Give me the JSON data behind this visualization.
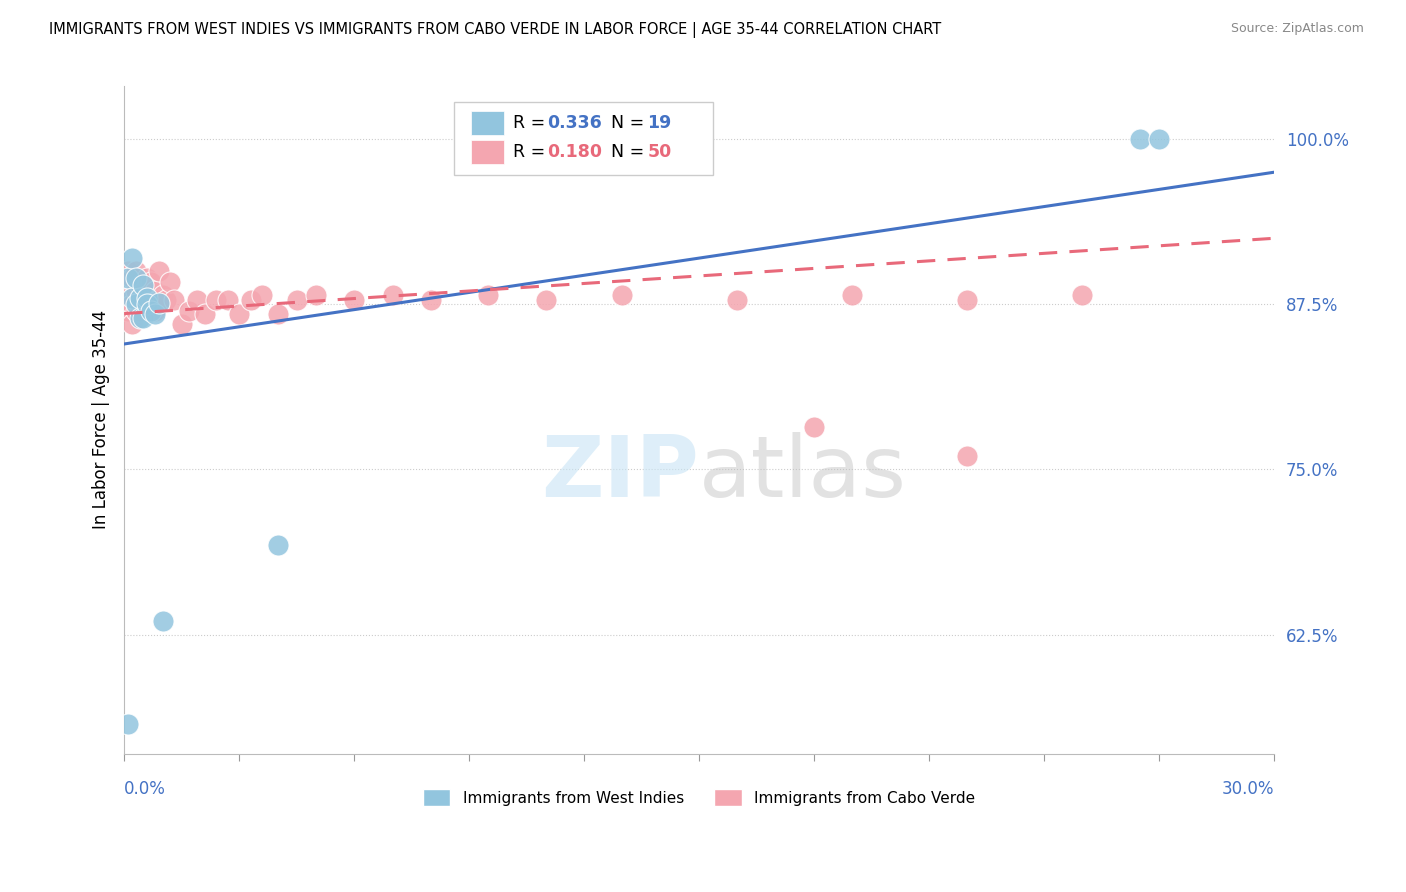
{
  "title": "IMMIGRANTS FROM WEST INDIES VS IMMIGRANTS FROM CABO VERDE IN LABOR FORCE | AGE 35-44 CORRELATION CHART",
  "source": "Source: ZipAtlas.com",
  "ylabel": "In Labor Force | Age 35-44",
  "xlim": [
    0.0,
    0.3
  ],
  "ylim": [
    0.535,
    1.04
  ],
  "ytick_vals": [
    0.625,
    0.75,
    0.875,
    1.0
  ],
  "ytick_labels": [
    "62.5%",
    "75.0%",
    "87.5%",
    "100.0%"
  ],
  "color_blue": "#92C5DE",
  "color_pink": "#F4A6B0",
  "color_line_blue": "#4472C4",
  "color_line_pink": "#E8697A",
  "R_blue_str": "0.336",
  "N_blue_str": "19",
  "R_pink_str": "0.180",
  "N_pink_str": "50",
  "blue_line_y0": 0.845,
  "blue_line_y1": 0.975,
  "pink_line_y0": 0.868,
  "pink_line_y1": 0.925,
  "west_indies_x": [
    0.001,
    0.001,
    0.002,
    0.002,
    0.003,
    0.003,
    0.004,
    0.004,
    0.005,
    0.005,
    0.006,
    0.006,
    0.007,
    0.008,
    0.009,
    0.01,
    0.04,
    0.265,
    0.27
  ],
  "west_indies_y": [
    0.557,
    0.895,
    0.88,
    0.91,
    0.875,
    0.895,
    0.88,
    0.865,
    0.89,
    0.865,
    0.88,
    0.875,
    0.87,
    0.868,
    0.876,
    0.635,
    0.693,
    1.0,
    1.0
  ],
  "cabo_verde_x": [
    0.001,
    0.001,
    0.001,
    0.002,
    0.002,
    0.002,
    0.003,
    0.003,
    0.003,
    0.004,
    0.004,
    0.004,
    0.005,
    0.005,
    0.006,
    0.006,
    0.007,
    0.007,
    0.008,
    0.008,
    0.009,
    0.009,
    0.01,
    0.011,
    0.012,
    0.013,
    0.015,
    0.017,
    0.019,
    0.021,
    0.024,
    0.027,
    0.03,
    0.033,
    0.036,
    0.04,
    0.045,
    0.05,
    0.06,
    0.07,
    0.08,
    0.095,
    0.11,
    0.13,
    0.16,
    0.19,
    0.22,
    0.25,
    0.18,
    0.22
  ],
  "cabo_verde_y": [
    0.9,
    0.88,
    0.87,
    0.895,
    0.875,
    0.86,
    0.885,
    0.87,
    0.9,
    0.875,
    0.89,
    0.87,
    0.878,
    0.89,
    0.875,
    0.895,
    0.878,
    0.892,
    0.885,
    0.87,
    0.878,
    0.9,
    0.882,
    0.878,
    0.892,
    0.878,
    0.86,
    0.87,
    0.878,
    0.868,
    0.878,
    0.878,
    0.868,
    0.878,
    0.882,
    0.868,
    0.878,
    0.882,
    0.878,
    0.882,
    0.878,
    0.882,
    0.878,
    0.882,
    0.878,
    0.882,
    0.878,
    0.882,
    0.782,
    0.76
  ]
}
